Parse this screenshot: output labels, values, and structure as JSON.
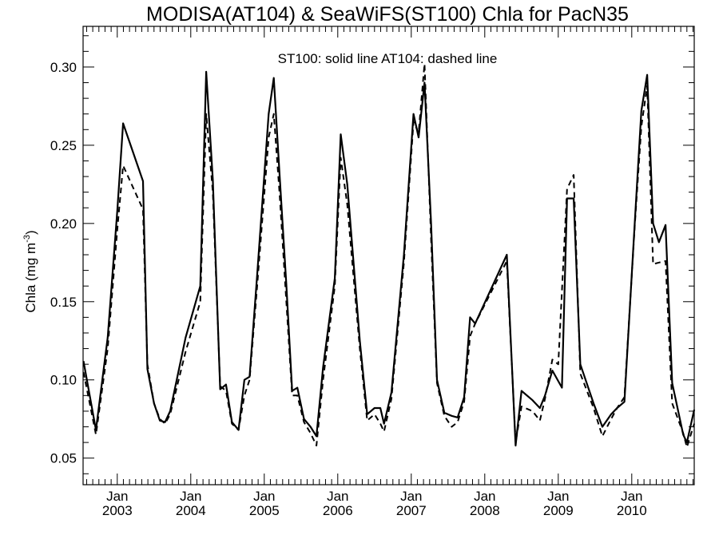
{
  "chart_data": {
    "type": "line",
    "title": "MODISA(AT104) & SeaWiFS(ST100)  Chla for PacN35",
    "annotation": "ST100: solid line   AT104: dashed line",
    "xlabel": "",
    "ylabel": "Chla (mg m",
    "ylabel_superscript": "-3",
    "ylabel_close": ")",
    "xlim": [
      2002.535,
      2010.85
    ],
    "ylim": [
      0.033,
      0.326
    ],
    "y_ticks": [
      0.05,
      0.1,
      0.15,
      0.2,
      0.25,
      0.3
    ],
    "y_tick_labels": [
      "0.05",
      "0.10",
      "0.15",
      "0.20",
      "0.25",
      "0.30"
    ],
    "x_ticks": [
      2003,
      2004,
      2005,
      2006,
      2007,
      2008,
      2009,
      2010
    ],
    "x_tick_month": "Jan",
    "x_tick_labels": [
      "2003",
      "2004",
      "2005",
      "2006",
      "2007",
      "2008",
      "2009",
      "2010"
    ],
    "grid": false,
    "series": [
      {
        "name": "ST100",
        "style": "solid",
        "color": "#000000",
        "points": [
          [
            2002.54,
            0.112
          ],
          [
            2002.71,
            0.068
          ],
          [
            2002.87,
            0.127
          ],
          [
            2003.0,
            0.208
          ],
          [
            2003.08,
            0.264
          ],
          [
            2003.35,
            0.227
          ],
          [
            2003.41,
            0.107
          ],
          [
            2003.5,
            0.085
          ],
          [
            2003.58,
            0.074
          ],
          [
            2003.65,
            0.073
          ],
          [
            2003.72,
            0.08
          ],
          [
            2003.93,
            0.127
          ],
          [
            2004.13,
            0.16
          ],
          [
            2004.21,
            0.297
          ],
          [
            2004.3,
            0.228
          ],
          [
            2004.4,
            0.094
          ],
          [
            2004.48,
            0.097
          ],
          [
            2004.56,
            0.073
          ],
          [
            2004.65,
            0.068
          ],
          [
            2004.73,
            0.1
          ],
          [
            2004.8,
            0.102
          ],
          [
            2004.9,
            0.165
          ],
          [
            2005.06,
            0.27
          ],
          [
            2005.13,
            0.293
          ],
          [
            2005.21,
            0.23
          ],
          [
            2005.3,
            0.161
          ],
          [
            2005.38,
            0.093
          ],
          [
            2005.45,
            0.095
          ],
          [
            2005.54,
            0.075
          ],
          [
            2005.63,
            0.07
          ],
          [
            2005.71,
            0.064
          ],
          [
            2005.8,
            0.108
          ],
          [
            2005.96,
            0.165
          ],
          [
            2006.04,
            0.257
          ],
          [
            2006.13,
            0.225
          ],
          [
            2006.3,
            0.125
          ],
          [
            2006.4,
            0.078
          ],
          [
            2006.5,
            0.082
          ],
          [
            2006.58,
            0.082
          ],
          [
            2006.63,
            0.072
          ],
          [
            2006.73,
            0.092
          ],
          [
            2006.9,
            0.18
          ],
          [
            2007.03,
            0.27
          ],
          [
            2007.1,
            0.255
          ],
          [
            2007.18,
            0.29
          ],
          [
            2007.27,
            0.2
          ],
          [
            2007.35,
            0.1
          ],
          [
            2007.45,
            0.079
          ],
          [
            2007.55,
            0.077
          ],
          [
            2007.63,
            0.076
          ],
          [
            2007.72,
            0.089
          ],
          [
            2007.8,
            0.14
          ],
          [
            2007.87,
            0.136
          ],
          [
            2008.3,
            0.18
          ],
          [
            2008.42,
            0.058
          ],
          [
            2008.5,
            0.093
          ],
          [
            2008.65,
            0.087
          ],
          [
            2008.75,
            0.082
          ],
          [
            2008.82,
            0.09
          ],
          [
            2008.92,
            0.106
          ],
          [
            2009.05,
            0.095
          ],
          [
            2009.12,
            0.216
          ],
          [
            2009.21,
            0.216
          ],
          [
            2009.3,
            0.11
          ],
          [
            2009.48,
            0.085
          ],
          [
            2009.6,
            0.07
          ],
          [
            2009.72,
            0.078
          ],
          [
            2009.8,
            0.082
          ],
          [
            2009.9,
            0.086
          ],
          [
            2010.04,
            0.2
          ],
          [
            2010.13,
            0.272
          ],
          [
            2010.21,
            0.295
          ],
          [
            2010.29,
            0.2
          ],
          [
            2010.37,
            0.188
          ],
          [
            2010.46,
            0.199
          ],
          [
            2010.55,
            0.098
          ],
          [
            2010.7,
            0.065
          ],
          [
            2010.75,
            0.06
          ],
          [
            2010.85,
            0.081
          ]
        ]
      },
      {
        "name": "AT104",
        "style": "dashed",
        "color": "#000000",
        "points": [
          [
            2002.54,
            0.105
          ],
          [
            2002.71,
            0.065
          ],
          [
            2002.87,
            0.12
          ],
          [
            2003.0,
            0.196
          ],
          [
            2003.08,
            0.237
          ],
          [
            2003.35,
            0.209
          ],
          [
            2003.41,
            0.11
          ],
          [
            2003.5,
            0.085
          ],
          [
            2003.58,
            0.075
          ],
          [
            2003.65,
            0.072
          ],
          [
            2003.72,
            0.078
          ],
          [
            2003.93,
            0.118
          ],
          [
            2004.13,
            0.15
          ],
          [
            2004.21,
            0.27
          ],
          [
            2004.3,
            0.22
          ],
          [
            2004.4,
            0.096
          ],
          [
            2004.48,
            0.093
          ],
          [
            2004.56,
            0.072
          ],
          [
            2004.65,
            0.068
          ],
          [
            2004.73,
            0.09
          ],
          [
            2004.8,
            0.1
          ],
          [
            2004.9,
            0.158
          ],
          [
            2005.06,
            0.255
          ],
          [
            2005.13,
            0.27
          ],
          [
            2005.21,
            0.218
          ],
          [
            2005.3,
            0.15
          ],
          [
            2005.38,
            0.09
          ],
          [
            2005.45,
            0.09
          ],
          [
            2005.54,
            0.073
          ],
          [
            2005.63,
            0.066
          ],
          [
            2005.71,
            0.058
          ],
          [
            2005.8,
            0.1
          ],
          [
            2005.96,
            0.16
          ],
          [
            2006.04,
            0.242
          ],
          [
            2006.13,
            0.212
          ],
          [
            2006.3,
            0.12
          ],
          [
            2006.4,
            0.074
          ],
          [
            2006.5,
            0.078
          ],
          [
            2006.58,
            0.072
          ],
          [
            2006.63,
            0.067
          ],
          [
            2006.73,
            0.088
          ],
          [
            2006.9,
            0.175
          ],
          [
            2007.03,
            0.265
          ],
          [
            2007.1,
            0.258
          ],
          [
            2007.18,
            0.302
          ],
          [
            2007.27,
            0.19
          ],
          [
            2007.35,
            0.098
          ],
          [
            2007.45,
            0.077
          ],
          [
            2007.55,
            0.07
          ],
          [
            2007.63,
            0.073
          ],
          [
            2007.72,
            0.086
          ],
          [
            2007.8,
            0.128
          ],
          [
            2007.87,
            0.136
          ],
          [
            2008.3,
            0.176
          ],
          [
            2008.42,
            0.06
          ],
          [
            2008.5,
            0.083
          ],
          [
            2008.65,
            0.08
          ],
          [
            2008.75,
            0.074
          ],
          [
            2008.82,
            0.088
          ],
          [
            2008.92,
            0.113
          ],
          [
            2009.0,
            0.11
          ],
          [
            2009.12,
            0.222
          ],
          [
            2009.21,
            0.231
          ],
          [
            2009.3,
            0.104
          ],
          [
            2009.48,
            0.082
          ],
          [
            2009.6,
            0.064
          ],
          [
            2009.72,
            0.075
          ],
          [
            2009.8,
            0.082
          ],
          [
            2009.9,
            0.089
          ],
          [
            2010.04,
            0.198
          ],
          [
            2010.13,
            0.262
          ],
          [
            2010.21,
            0.288
          ],
          [
            2010.29,
            0.174
          ],
          [
            2010.37,
            0.175
          ],
          [
            2010.46,
            0.176
          ],
          [
            2010.55,
            0.085
          ],
          [
            2010.7,
            0.066
          ],
          [
            2010.75,
            0.057
          ],
          [
            2010.85,
            0.072
          ]
        ]
      }
    ]
  }
}
